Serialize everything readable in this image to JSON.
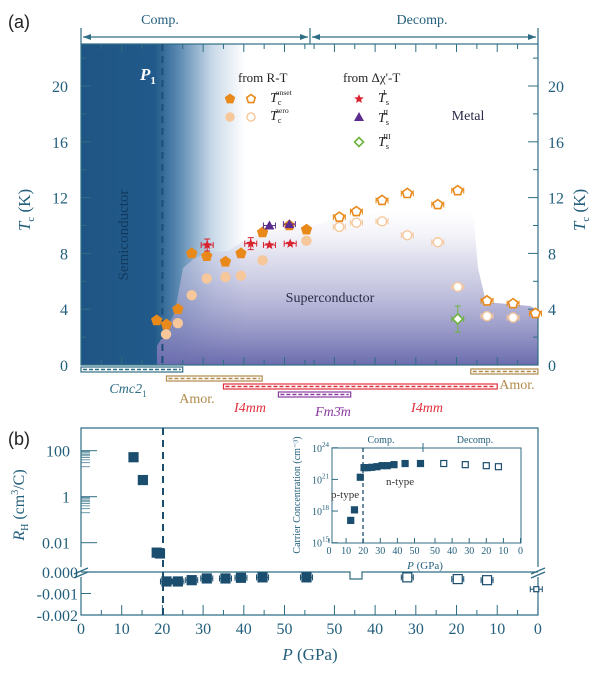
{
  "colors": {
    "axis": "#2f6d84",
    "axis_text": "#235f7c",
    "semiconductor": "#1f5585",
    "superconductor": "#6b6cae",
    "onset": "#e8891a",
    "zero": "#f6c79b",
    "ts1": "#d9232e",
    "ts2": "#5b2d8e",
    "ts3": "#6db33f",
    "hall": "#1a4d6e",
    "amor": "#b08a4a",
    "i4mm": "#e0303c",
    "fm3m": "#8a3aa0",
    "cmc": "#2f6d84"
  },
  "chart_data": [
    {
      "panel": "(a)",
      "type": "scatter",
      "top_labels": {
        "comp": "Comp.",
        "decomp": "Decomp."
      },
      "ylabel": {
        "main": "T",
        "sub": "c",
        "unit": " (K)"
      },
      "ylim": [
        0,
        22.6
      ],
      "yticks": [
        0,
        4,
        8,
        12,
        16,
        20
      ],
      "x_branches": {
        "comp": [
          0,
          56
        ],
        "decomp": [
          56,
          0
        ]
      },
      "regions": {
        "semiconductor": "Semiconductor",
        "superconductor": "Superconductor",
        "metal": "Metal",
        "p1": "P",
        "p1_sub": "1",
        "p1_pressure": 20
      },
      "legend": {
        "rt_header": "from R-T",
        "chi_header": "from Δχ'-T",
        "onset": {
          "main": "T",
          "sub": "c",
          "sup": "onset"
        },
        "zero": {
          "main": "T",
          "sub": "c",
          "sup": "zero"
        },
        "ts1": {
          "main": "T",
          "sub": "s",
          "sup": "I"
        },
        "ts2": {
          "main": "T",
          "sub": "s",
          "sup": "II"
        },
        "ts3": {
          "main": "T",
          "sub": "s",
          "sup": "III"
        }
      },
      "series": [
        {
          "key": "onset",
          "marker": "pentagon",
          "points": [
            {
              "branch": "comp",
              "P": 18.6,
              "Tc": 3.2
            },
            {
              "branch": "comp",
              "P": 21.0,
              "Tc": 2.9
            },
            {
              "branch": "comp",
              "P": 23.8,
              "Tc": 4.0
            },
            {
              "branch": "comp",
              "P": 27.2,
              "Tc": 8.0
            },
            {
              "branch": "comp",
              "P": 30.9,
              "Tc": 7.8
            },
            {
              "branch": "comp",
              "P": 35.5,
              "Tc": 7.4
            },
            {
              "branch": "comp",
              "P": 39.3,
              "Tc": 8.0
            },
            {
              "branch": "comp",
              "P": 44.6,
              "Tc": 9.5
            },
            {
              "branch": "comp",
              "P": 51.2,
              "Tc": 10.0
            },
            {
              "branch": "comp",
              "P": 55.4,
              "Tc": 9.7
            },
            {
              "branch": "decomp",
              "P": 48.8,
              "Tc": 10.6
            },
            {
              "branch": "decomp",
              "P": 44.6,
              "Tc": 11.0
            },
            {
              "branch": "decomp",
              "P": 38.3,
              "Tc": 11.8
            },
            {
              "branch": "decomp",
              "P": 32.1,
              "Tc": 12.3
            },
            {
              "branch": "decomp",
              "P": 24.6,
              "Tc": 11.5
            },
            {
              "branch": "decomp",
              "P": 19.7,
              "Tc": 12.5
            },
            {
              "branch": "decomp",
              "P": 12.5,
              "Tc": 4.6
            },
            {
              "branch": "decomp",
              "P": 6.1,
              "Tc": 4.4
            },
            {
              "branch": "decomp",
              "P": 0.6,
              "Tc": 3.7
            }
          ]
        },
        {
          "key": "zero",
          "marker": "circle",
          "points": [
            {
              "branch": "comp",
              "P": 20.9,
              "Tc": 2.2
            },
            {
              "branch": "comp",
              "P": 23.8,
              "Tc": 3.0
            },
            {
              "branch": "comp",
              "P": 27.2,
              "Tc": 5.0
            },
            {
              "branch": "comp",
              "P": 30.9,
              "Tc": 6.2
            },
            {
              "branch": "comp",
              "P": 35.5,
              "Tc": 6.3
            },
            {
              "branch": "comp",
              "P": 39.3,
              "Tc": 6.4
            },
            {
              "branch": "comp",
              "P": 44.6,
              "Tc": 7.5
            },
            {
              "branch": "comp",
              "P": 55.4,
              "Tc": 8.9
            },
            {
              "branch": "decomp",
              "P": 48.8,
              "Tc": 9.9
            },
            {
              "branch": "decomp",
              "P": 44.6,
              "Tc": 10.2
            },
            {
              "branch": "decomp",
              "P": 38.3,
              "Tc": 10.3
            },
            {
              "branch": "decomp",
              "P": 32.1,
              "Tc": 9.3
            },
            {
              "branch": "decomp",
              "P": 24.6,
              "Tc": 8.8
            },
            {
              "branch": "decomp",
              "P": 19.7,
              "Tc": 5.6
            },
            {
              "branch": "decomp",
              "P": 12.5,
              "Tc": 3.5
            },
            {
              "branch": "decomp",
              "P": 6.1,
              "Tc": 3.4
            }
          ]
        },
        {
          "key": "ts1",
          "marker": "star",
          "points": [
            {
              "branch": "comp",
              "P": 31.0,
              "Tc": 8.6
            },
            {
              "branch": "comp",
              "P": 41.7,
              "Tc": 8.7
            },
            {
              "branch": "comp",
              "P": 46.3,
              "Tc": 8.6
            },
            {
              "branch": "comp",
              "P": 51.4,
              "Tc": 8.7
            }
          ]
        },
        {
          "key": "ts2",
          "marker": "triangle",
          "points": [
            {
              "branch": "comp",
              "P": 46.3,
              "Tc": 10.0
            },
            {
              "branch": "comp",
              "P": 51.2,
              "Tc": 10.1
            }
          ]
        },
        {
          "key": "ts3",
          "marker": "diamond",
          "points": [
            {
              "branch": "decomp",
              "P": 19.7,
              "Tc": 3.3
            }
          ]
        }
      ],
      "phases": [
        {
          "name": "Cmc2",
          "sub": "1",
          "color_key": "cmc",
          "from": {
            "branch": "comp",
            "P": 0
          },
          "to": {
            "branch": "comp",
            "P": 25
          }
        },
        {
          "name": "Amor.",
          "color_key": "amor",
          "from": {
            "branch": "comp",
            "P": 21
          },
          "to": {
            "branch": "comp",
            "P": 44.5
          }
        },
        {
          "name": "I4mm",
          "color_key": "i4mm",
          "from": {
            "branch": "comp",
            "P": 35
          },
          "to": {
            "branch": "decomp",
            "P": 10
          }
        },
        {
          "name": "Fm3̄m",
          "color_key": "fm3m",
          "from": {
            "branch": "comp",
            "P": 48.5
          },
          "to": {
            "branch": "decomp",
            "P": 46
          }
        },
        {
          "name": "I4mm",
          "color_key": "i4mm",
          "from": null,
          "to": null
        },
        {
          "name": "Amor.",
          "color_key": "amor",
          "from": {
            "branch": "decomp",
            "P": 16.5
          },
          "to": {
            "branch": "decomp",
            "P": 0
          }
        }
      ]
    },
    {
      "panel": "(b)",
      "type": "scatter",
      "xlabel": {
        "main": "P",
        "unit": " (GPa)"
      },
      "xticks": {
        "comp": [
          0,
          10,
          20,
          30,
          40,
          50
        ],
        "decomp": [
          50,
          40,
          30,
          20,
          10,
          0
        ]
      },
      "ylabel": {
        "main": "R",
        "sub": "H",
        "unit": " (cm",
        "sup": "3",
        "unit2": "/C)"
      },
      "yscale": "broken: log above, linear below",
      "yticks_log": [
        "100",
        "1",
        "0.01"
      ],
      "yticks_lin": [
        "0.000",
        "-0.001",
        "-0.002"
      ],
      "series": [
        {
          "key": "hall",
          "points": [
            {
              "branch": "comp",
              "P": 12.9,
              "RH": 52
            },
            {
              "branch": "comp",
              "P": 15.2,
              "RH": 5.3
            },
            {
              "branch": "comp",
              "P": 18.6,
              "RH": 0.0037
            },
            {
              "branch": "comp",
              "P": 19.4,
              "RH": 0.0034
            },
            {
              "branch": "comp",
              "P": 21.0,
              "RH": -0.00044
            },
            {
              "branch": "comp",
              "P": 23.8,
              "RH": -0.00044
            },
            {
              "branch": "comp",
              "P": 27.2,
              "RH": -0.00038
            },
            {
              "branch": "comp",
              "P": 30.9,
              "RH": -0.0003
            },
            {
              "branch": "comp",
              "P": 35.5,
              "RH": -0.0003
            },
            {
              "branch": "comp",
              "P": 39.3,
              "RH": -0.00027
            },
            {
              "branch": "comp",
              "P": 44.6,
              "RH": -0.00025
            },
            {
              "branch": "comp",
              "P": 55.4,
              "RH": -0.00025
            },
            {
              "branch": "decomp",
              "P": 32.1,
              "RH": -0.00025
            },
            {
              "branch": "decomp",
              "P": 19.7,
              "RH": -0.00033
            },
            {
              "branch": "decomp",
              "P": 12.5,
              "RH": -0.00038
            },
            {
              "branch": "decomp",
              "P": 0.4,
              "RH": -0.0008
            }
          ]
        }
      ]
    },
    {
      "panel": "(b) inset",
      "type": "scatter",
      "top_labels": {
        "comp": "Comp.",
        "decomp": "Decomp."
      },
      "xlabel": {
        "main": "P",
        "unit": " (GPa)"
      },
      "xticks": {
        "comp": [
          0,
          10,
          20,
          30,
          40,
          50
        ],
        "decomp": [
          50,
          40,
          30,
          20,
          10,
          0
        ]
      },
      "ylabel": "Carrier Concentration (cm⁻³)",
      "yscale": "log",
      "ylim": [
        1000000000000000.0,
        1e+24
      ],
      "yticks": [
        {
          "base": "10",
          "exp": "15"
        },
        {
          "base": "10",
          "exp": "18"
        },
        {
          "base": "10",
          "exp": "21"
        },
        {
          "base": "10",
          "exp": "24"
        }
      ],
      "annotations": {
        "p_type": "p-type",
        "n_type": "n-type"
      },
      "series": [
        {
          "key": "carrier",
          "points": [
            {
              "branch": "comp",
              "P": 12.7,
              "n": 1.3e+17
            },
            {
              "branch": "comp",
              "P": 14.9,
              "n": 1.3e+18
            },
            {
              "branch": "comp",
              "P": 18.3,
              "n": 1.6e+21
            },
            {
              "branch": "comp",
              "P": 20.5,
              "n": 1.3e+22
            },
            {
              "branch": "comp",
              "P": 22.5,
              "n": 1.3e+22
            },
            {
              "branch": "comp",
              "P": 25,
              "n": 1.4e+22
            },
            {
              "branch": "comp",
              "P": 28,
              "n": 1.6e+22
            },
            {
              "branch": "comp",
              "P": 31,
              "n": 2e+22
            },
            {
              "branch": "comp",
              "P": 34,
              "n": 2e+22
            },
            {
              "branch": "comp",
              "P": 38,
              "n": 2.5e+22
            },
            {
              "branch": "comp",
              "P": 44.5,
              "n": 3.2e+22
            },
            {
              "branch": "comp",
              "P": 53.5,
              "n": 3.2e+22
            },
            {
              "branch": "decomp",
              "P": 44.9,
              "n": 3.2e+22
            },
            {
              "branch": "decomp",
              "P": 32.3,
              "n": 2.5e+22
            },
            {
              "branch": "decomp",
              "P": 20.0,
              "n": 2e+22
            },
            {
              "branch": "decomp",
              "P": 12.9,
              "n": 1.6e+22
            }
          ]
        }
      ]
    }
  ]
}
